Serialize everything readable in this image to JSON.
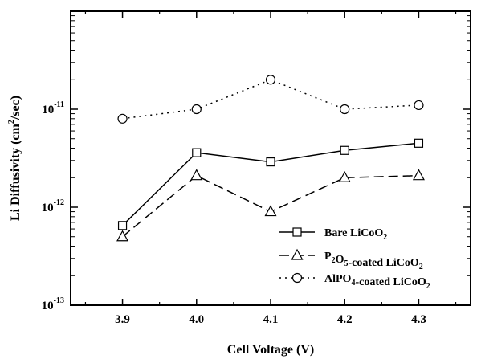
{
  "chart_data": {
    "type": "line",
    "xlabel": "Cell Voltage (V)",
    "ylabel": {
      "base": "Li Diffusivity (cm",
      "sup": "2",
      "tail": "/sec)"
    },
    "xlim": [
      3.83,
      4.37
    ],
    "ylim": [
      1e-13,
      1e-10
    ],
    "yscale": "log",
    "x": [
      3.9,
      4.0,
      4.1,
      4.2,
      4.3
    ],
    "x_ticks": [
      "3.9",
      "4.0",
      "4.1",
      "4.2",
      "4.3"
    ],
    "y_ticks": [
      {
        "value": 1e-13,
        "base": "10",
        "exp": "-13"
      },
      {
        "value": 1e-12,
        "base": "10",
        "exp": "-12"
      },
      {
        "value": 1e-11,
        "base": "10",
        "exp": "-11"
      }
    ],
    "legend_position": "lower-right",
    "series": [
      {
        "name": "Bare LiCoO2",
        "name_parts": [
          {
            "t": "Bare LiCoO"
          },
          {
            "t": "2",
            "sub": true
          }
        ],
        "values": [
          6.5e-13,
          3.6e-12,
          2.9e-12,
          3.8e-12,
          4.5e-12
        ],
        "marker": "square",
        "dash": "solid"
      },
      {
        "name": "P2O5-coated LiCoO2",
        "name_parts": [
          {
            "t": "P"
          },
          {
            "t": "2",
            "sub": true
          },
          {
            "t": "O"
          },
          {
            "t": "5",
            "sub": true
          },
          {
            "t": "-coated LiCoO"
          },
          {
            "t": "2",
            "sub": true
          }
        ],
        "values": [
          5e-13,
          2.1e-12,
          9e-13,
          2e-12,
          2.1e-12
        ],
        "marker": "triangle",
        "dash": "dashed"
      },
      {
        "name": "AlPO4-coated LiCoO2",
        "name_parts": [
          {
            "t": "AlPO"
          },
          {
            "t": "4",
            "sub": true
          },
          {
            "t": "-coated LiCoO"
          },
          {
            "t": "2",
            "sub": true
          }
        ],
        "values": [
          8e-12,
          1e-11,
          2e-11,
          1e-11,
          1.1e-11
        ],
        "marker": "circle",
        "dash": "dotted"
      }
    ]
  }
}
